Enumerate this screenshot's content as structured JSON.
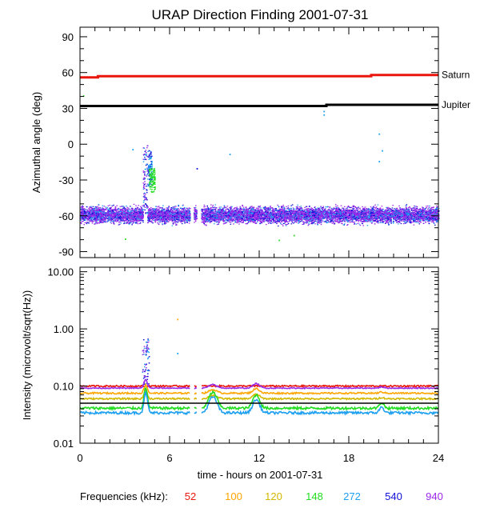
{
  "title": "URAP Direction Finding  2001-07-31",
  "xlabel": "time - hours on 2001-07-31",
  "legend": {
    "label": "Frequencies (kHz):",
    "items": [
      {
        "text": "52",
        "color": "#e8160c"
      },
      {
        "text": "100",
        "color": "#ffa500"
      },
      {
        "text": "120",
        "color": "#d4b800"
      },
      {
        "text": "148",
        "color": "#22dd22"
      },
      {
        "text": "272",
        "color": "#1ea0f0"
      },
      {
        "text": "540",
        "color": "#1010d8"
      },
      {
        "text": "940",
        "color": "#9a28e8"
      }
    ]
  },
  "chart_data": [
    {
      "type": "scatter",
      "ylabel": "Azimuthal angle (deg)",
      "xlim": [
        0,
        24
      ],
      "ylim": [
        -95,
        98
      ],
      "xticks": [
        0,
        6,
        12,
        18,
        24
      ],
      "yticks": [
        90,
        60,
        30,
        0,
        -30,
        -60,
        -90
      ],
      "ytick_labels": [
        "90",
        "60",
        "30",
        "0",
        "-30",
        "-60",
        "-90"
      ],
      "reference_lines": [
        {
          "name": "Saturn",
          "color": "#e8160c",
          "points": [
            [
              0,
              56
            ],
            [
              1.2,
              56
            ],
            [
              1.2,
              57
            ],
            [
              19.5,
              57
            ],
            [
              19.5,
              58
            ],
            [
              24,
              58
            ]
          ]
        },
        {
          "name": "Jupiter",
          "color": "#000000",
          "points": [
            [
              0,
              32
            ],
            [
              16.5,
              32
            ],
            [
              16.5,
              33
            ],
            [
              24,
              33
            ]
          ]
        }
      ],
      "bands": [
        {
          "x_ranges": [
            [
              0,
              4.2
            ],
            [
              4.5,
              7.35
            ],
            [
              7.6,
              7.8
            ],
            [
              8.1,
              24
            ]
          ],
          "y_center": -59,
          "y_spread": 8,
          "colors": [
            "#9a28e8",
            "#9a28e8",
            "#9a28e8",
            "#1010d8",
            "#1ea0f0"
          ]
        }
      ],
      "bursts": [
        {
          "x_range": [
            4.2,
            4.5
          ],
          "y_range": [
            -60,
            0
          ],
          "colors": [
            "#1010d8",
            "#9a28e8",
            "#1ea0f0"
          ]
        },
        {
          "x_range": [
            4.5,
            4.8
          ],
          "y_range": [
            -35,
            -5
          ],
          "colors": [
            "#1ea0f0",
            "#1010d8"
          ]
        },
        {
          "x_range": [
            4.6,
            5.0
          ],
          "y_range": [
            -40,
            -20
          ],
          "colors": [
            "#22dd22"
          ]
        }
      ],
      "scattered_points": [
        {
          "x": 0.2,
          "y": 41,
          "color": "#22dd22"
        },
        {
          "x": 3.5,
          "y": -4,
          "color": "#1ea0f0"
        },
        {
          "x": 7.8,
          "y": -20,
          "color": "#1010d8"
        },
        {
          "x": 10.0,
          "y": -8,
          "color": "#1ea0f0"
        },
        {
          "x": 16.3,
          "y": 28,
          "color": "#1ea0f0"
        },
        {
          "x": 16.3,
          "y": 25,
          "color": "#1ea0f0"
        },
        {
          "x": 20.0,
          "y": 9,
          "color": "#1ea0f0"
        },
        {
          "x": 20.2,
          "y": -5,
          "color": "#1ea0f0"
        },
        {
          "x": 20.0,
          "y": -14,
          "color": "#1ea0f0"
        },
        {
          "x": 13.3,
          "y": -80,
          "color": "#22dd22"
        },
        {
          "x": 14.3,
          "y": -76,
          "color": "#22dd22"
        },
        {
          "x": 3.0,
          "y": -79,
          "color": "#22dd22"
        }
      ]
    },
    {
      "type": "line",
      "ylabel": "Intensity (microvolt/sqrt(Hz))",
      "yscale": "log",
      "xlim": [
        0,
        24
      ],
      "ylim": [
        0.01,
        12
      ],
      "xticks": [
        0,
        6,
        12,
        18,
        24
      ],
      "xtick_labels": [
        "0",
        "6",
        "12",
        "18",
        "24"
      ],
      "yticks": [
        10,
        1,
        0.1,
        0.01
      ],
      "ytick_labels": [
        "10.00",
        "1.00",
        "0.10",
        "0.01"
      ],
      "reference_line": {
        "y": 0.05,
        "color": "#000000"
      },
      "gaps": [
        [
          7.35,
          7.6
        ],
        [
          7.8,
          8.1
        ]
      ],
      "series": [
        {
          "color": "#e8160c",
          "base": 0.1,
          "wobble": 0.03
        },
        {
          "color": "#ffa500",
          "base": 0.075,
          "wobble": 0.03
        },
        {
          "color": "#d4b800",
          "base": 0.06,
          "wobble": 0.03
        },
        {
          "color": "#9a28e8",
          "base": 0.092,
          "wobble": 0.02
        },
        {
          "color": "#22dd22",
          "base": 0.041,
          "wobble": 0.05
        },
        {
          "color": "#1ea0f0",
          "base": 0.034,
          "wobble": 0.05
        }
      ],
      "events": [
        {
          "x_range": [
            4.15,
            4.6
          ],
          "y_range": [
            0.1,
            0.7
          ],
          "colors": [
            "#9a28e8",
            "#1ea0f0",
            "#1010d8"
          ]
        },
        {
          "x": 6.5,
          "y": 1.5,
          "color": "#ffa500"
        },
        {
          "x": 6.5,
          "y": 0.38,
          "color": "#1ea0f0"
        }
      ]
    }
  ]
}
